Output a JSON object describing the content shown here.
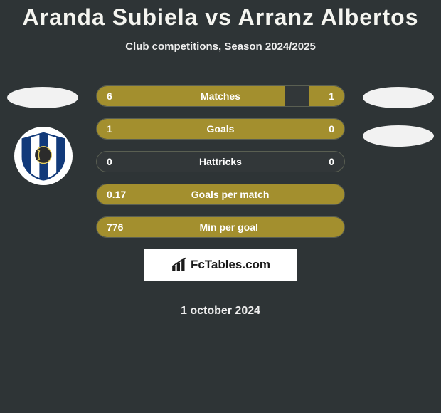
{
  "title": "Aranda Subiela vs Arranz Albertos",
  "subtitle": "Club competitions, Season 2024/2025",
  "date": "1 october 2024",
  "colors": {
    "bar_fill": "#a38f2e",
    "bar_border": "#5a5f52",
    "background": "#2e3436"
  },
  "stats": [
    {
      "label": "Matches",
      "left_val": "6",
      "right_val": "1",
      "left_pct": 76,
      "right_pct": 14
    },
    {
      "label": "Goals",
      "left_val": "1",
      "right_val": "0",
      "left_pct": 100,
      "right_pct": 0
    },
    {
      "label": "Hattricks",
      "left_val": "0",
      "right_val": "0",
      "left_pct": 0,
      "right_pct": 0
    },
    {
      "label": "Goals per match",
      "left_val": "0.17",
      "right_val": "",
      "left_pct": 100,
      "right_pct": 0
    },
    {
      "label": "Min per goal",
      "left_val": "776",
      "right_val": "",
      "left_pct": 100,
      "right_pct": 0
    }
  ],
  "brand": {
    "icon_name": "bar-chart-icon",
    "text": "FcTables.com"
  },
  "club_badge": {
    "stripe_colors": [
      "#123a7a",
      "#ffffff",
      "#123a7a",
      "#ffffff",
      "#123a7a"
    ],
    "head_fill": "#2b2b2b",
    "head_outline": "#e4cc5a"
  }
}
